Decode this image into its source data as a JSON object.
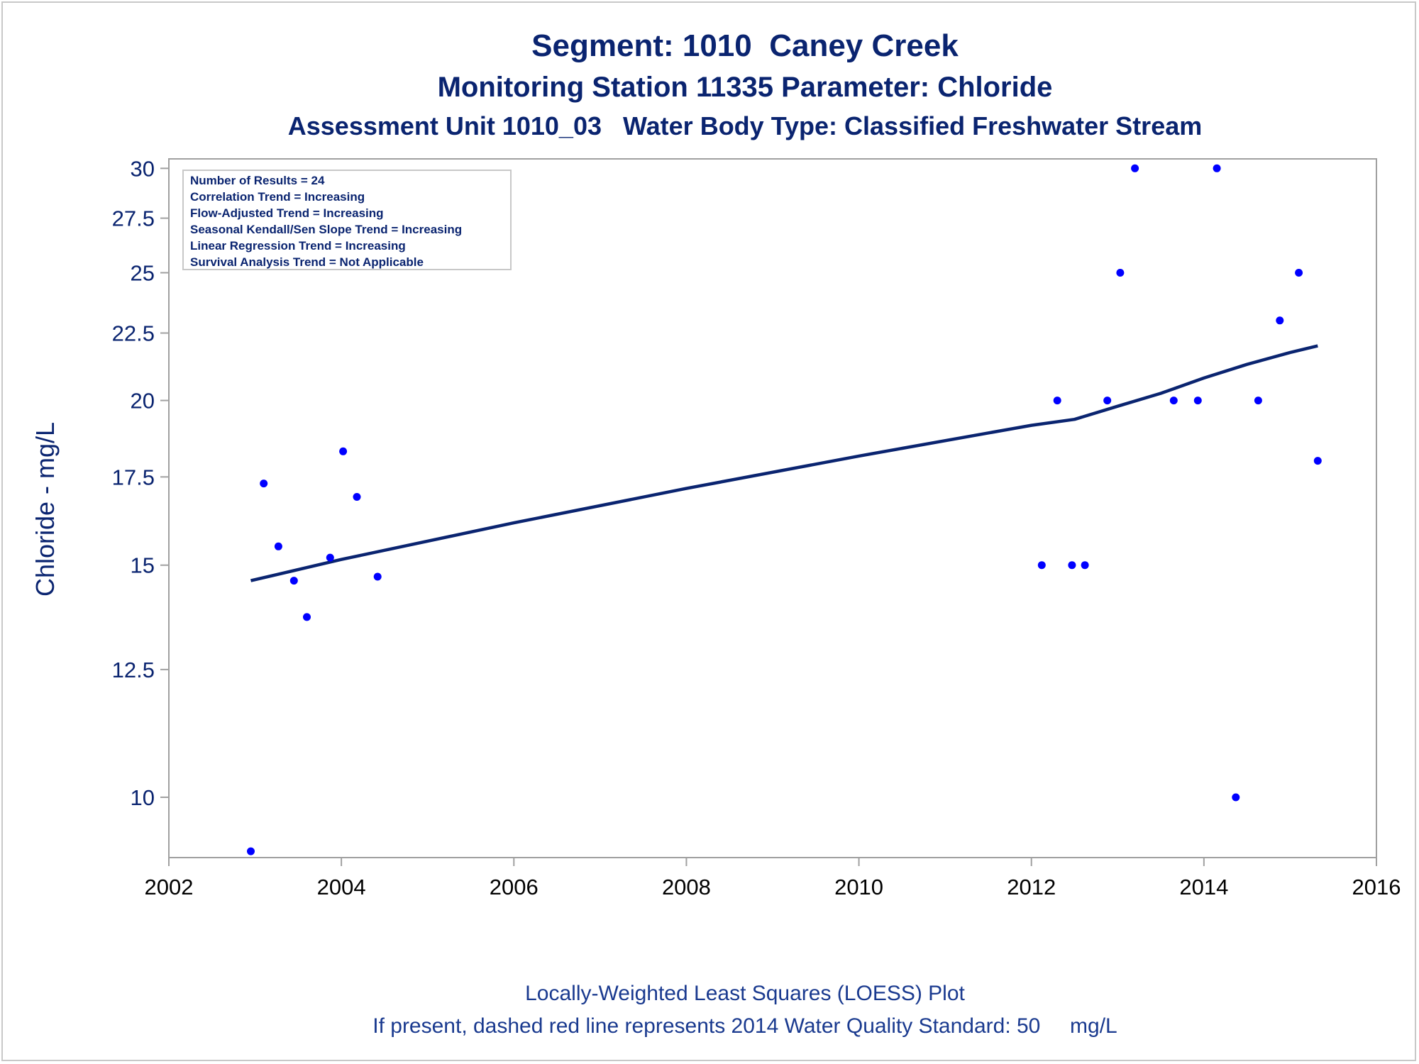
{
  "title": "Segment: 1010  Caney Creek",
  "subtitle1": "Monitoring Station 11335 Parameter: Chloride",
  "subtitle2": "Assessment Unit 1010_03   Water Body Type: Classified Freshwater Stream",
  "footnote1": "Locally-Weighted Least Squares (LOESS) Plot",
  "footnote2": "If present, dashed red line represents 2014 Water Quality Standard: 50     mg/L",
  "colors": {
    "text": "#0a2470",
    "points": "#0000ff",
    "trend_line": "#0a2470",
    "axis": "#a0a0a0"
  },
  "chart_data": {
    "type": "scatter",
    "ylabel": "Chloride - mg/L",
    "xlabel": "",
    "y_scale": "log",
    "xlim": [
      2002,
      2016
    ],
    "ylim": [
      9,
      30.5
    ],
    "x_ticks": [
      2002,
      2004,
      2006,
      2008,
      2010,
      2012,
      2014,
      2016
    ],
    "x_tick_labels": [
      "2002",
      "2004",
      "2006",
      "2008",
      "2010",
      "2012",
      "2014",
      "2016"
    ],
    "y_ticks": [
      10,
      12.5,
      15,
      17.5,
      20,
      22.5,
      25,
      27.5,
      30
    ],
    "y_tick_labels": [
      "10",
      "12.5",
      "15",
      "17.5",
      "20",
      "22.5",
      "25",
      "27.5",
      "30"
    ],
    "grid": false,
    "legend_placement": "top-left",
    "stats": [
      "Number of Results = 24",
      "Correlation Trend = Increasing",
      "Flow-Adjusted Trend = Increasing",
      "Seasonal Kendall/Sen Slope Trend = Increasing",
      "Linear Regression Trend = Increasing",
      "Survival Analysis Trend = Not Applicable"
    ],
    "series": [
      {
        "kind": "points",
        "x": [
          2002.95,
          2003.1,
          2003.27,
          2003.45,
          2003.6,
          2003.87,
          2004.02,
          2004.18,
          2004.42,
          2012.12,
          2012.3,
          2012.47,
          2012.62,
          2012.88,
          2013.03,
          2013.2,
          2013.65,
          2013.93,
          2014.15,
          2014.37,
          2014.63,
          2014.88,
          2015.1,
          2015.32
        ],
        "y": [
          9.1,
          17.3,
          15.5,
          14.6,
          13.7,
          15.2,
          18.3,
          16.9,
          14.7,
          15,
          20,
          15,
          15,
          20,
          25,
          30,
          20,
          20,
          30,
          10,
          20,
          23,
          25,
          18
        ]
      },
      {
        "kind": "loess",
        "x": [
          2002.95,
          2004,
          2006,
          2008,
          2010,
          2012,
          2012.5,
          2013,
          2013.5,
          2014,
          2014.5,
          2015,
          2015.32
        ],
        "y": [
          14.6,
          15.15,
          16.15,
          17.15,
          18.15,
          19.15,
          19.35,
          19.8,
          20.25,
          20.8,
          21.3,
          21.75,
          22
        ]
      }
    ]
  }
}
